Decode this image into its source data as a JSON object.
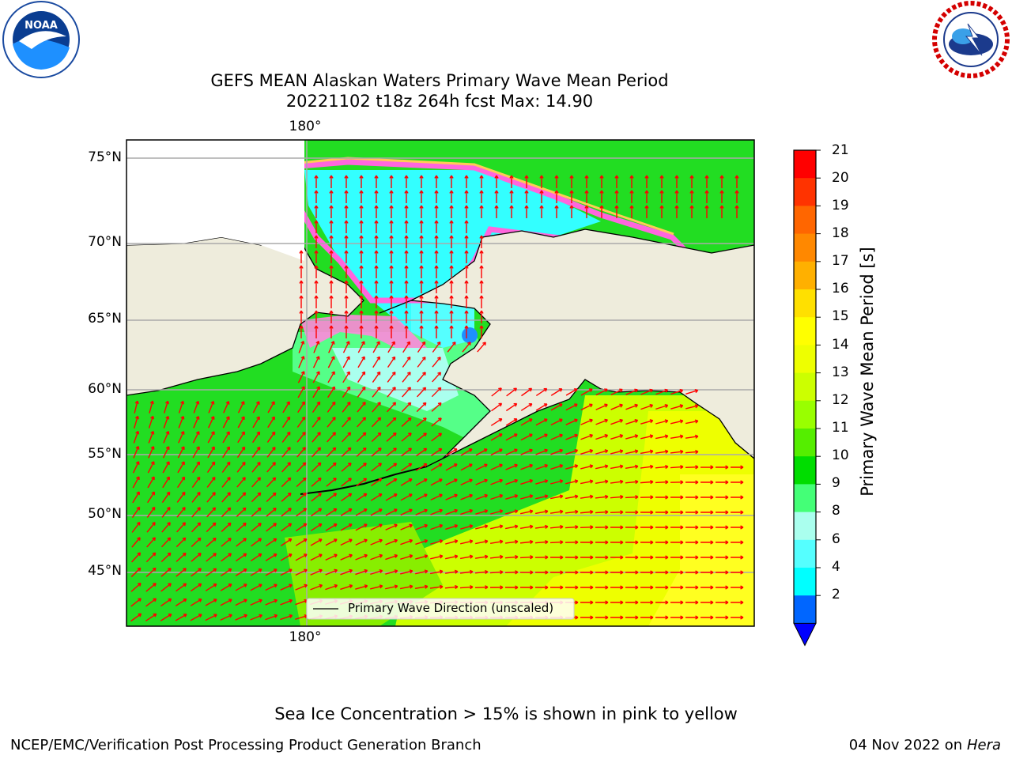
{
  "title": {
    "line1": "GEFS MEAN Alaskan Waters Primary Wave Mean Period",
    "line2": "20221102 t18z 264h fcst   Max: 14.90"
  },
  "logos": {
    "noaa": "NOAA",
    "noaa_ring": "NATIONAL OCEANIC AND ATMOSPHERIC ADMINISTRATION · U.S. DEPARTMENT OF COMMERCE",
    "nws_ring": "NATIONAL WEATHER SERVICE"
  },
  "map": {
    "lat_labels": [
      "75°N",
      "70°N",
      "65°N",
      "60°N",
      "55°N",
      "50°N",
      "45°N"
    ],
    "lon_label_top": "180°",
    "lon_label_bottom": "180°",
    "legend": "Primary Wave Direction (unscaled)",
    "land_color": "#eeecdc",
    "arrow_color": "#ff0000"
  },
  "colorbar": {
    "label": "Primary Wave Mean Period [s]",
    "ticks": [
      "21",
      "20",
      "19",
      "18",
      "17",
      "16",
      "15",
      "14",
      "13",
      "12",
      "11",
      "10",
      "9",
      "8",
      "6",
      "4",
      "2"
    ],
    "colors": [
      "#ff0000",
      "#ff3300",
      "#ff6600",
      "#ff8800",
      "#ffb000",
      "#ffe000",
      "#ffff00",
      "#eeff00",
      "#ccff00",
      "#99ff00",
      "#55ee00",
      "#00dd00",
      "#44ff77",
      "#aaffee",
      "#55ffff",
      "#00ffff",
      "#00bbff",
      "#0066ff"
    ],
    "extend_color": "#0000ff"
  },
  "footer": {
    "ice_note": "Sea Ice Concentration > 15% is shown in pink to yellow",
    "credit": "NCEP/EMC/Verification Post Processing Product Generation Branch",
    "date": "04 Nov 2022 on",
    "machine": "Hera"
  }
}
